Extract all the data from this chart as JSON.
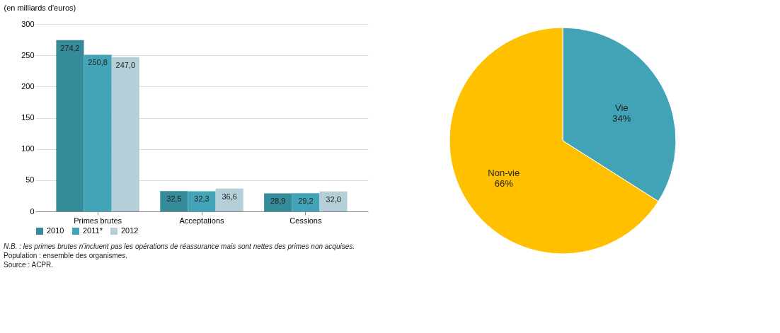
{
  "chart_data": [
    {
      "type": "bar",
      "ylabel": "(en milliards d'euros)",
      "categories": [
        "Primes brutes",
        "Acceptations",
        "Cessions"
      ],
      "series": [
        {
          "name": "2010",
          "color": "#368b9a",
          "values": [
            274.2,
            32.5,
            28.9
          ],
          "value_labels": [
            "274,2",
            "32,5",
            "28,9"
          ]
        },
        {
          "name": "2011*",
          "color": "#43a4b7",
          "values": [
            250.8,
            32.3,
            29.2
          ],
          "value_labels": [
            "250,8",
            "32,3",
            "29,2"
          ]
        },
        {
          "name": "2012",
          "color": "#b4cfd8",
          "values": [
            247.0,
            36.6,
            32.0
          ],
          "value_labels": [
            "247,0",
            "36,6",
            "32,0"
          ]
        }
      ],
      "ylim": [
        0,
        300
      ],
      "yticks": [
        0,
        50,
        100,
        150,
        200,
        250,
        300
      ],
      "grid": "y",
      "legend": "bottom",
      "annotations": [
        "N.B. : les primes brutes n'incluent pas les opérations de réassurance mais sont nettes des primes non acquises.",
        "Population : ensemble des organismes.",
        "Source : ACPR."
      ]
    },
    {
      "type": "pie",
      "categories": [
        "Vie",
        "Non-vie"
      ],
      "values": [
        34,
        66
      ],
      "colors": [
        "#42a2b6",
        "#ffc000"
      ],
      "value_labels": [
        "34%",
        "66%"
      ],
      "legend": false
    }
  ]
}
